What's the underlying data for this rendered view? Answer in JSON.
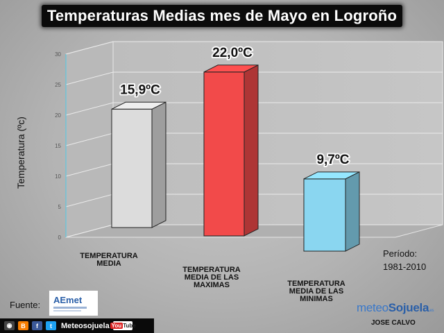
{
  "title": "Temperaturas Medias mes de Mayo en Logroño",
  "colors": {
    "media": "#dcdcdc",
    "maximas": "#f24a4a",
    "minimas": "#8ad6f0"
  },
  "chart_data": {
    "type": "bar",
    "ylabel": "Temperatura (ºc)",
    "ylim": [
      0,
      30
    ],
    "yticks": [
      "0",
      "5",
      "10",
      "15",
      "20",
      "25",
      "30"
    ],
    "grid": true,
    "categories": [
      [
        "TEMPERATURA",
        "MEDIA"
      ],
      [
        "TEMPERATURA",
        "MEDIA DE LAS",
        "MAXIMAS"
      ],
      [
        "TEMPERATURA",
        "MEDIA DE LAS",
        "MINIMAS"
      ]
    ],
    "values": [
      15.9,
      22.0,
      9.7
    ],
    "data_labels": [
      "15,9ºC",
      "22,0ºC",
      "9,7ºC"
    ],
    "bar_colors": [
      "#dcdcdc",
      "#f24a4a",
      "#8ad6f0"
    ]
  },
  "periodo": {
    "label": "Período:",
    "value": "1981-2010"
  },
  "fuente": "Fuente:",
  "aemet_logo_text": "AEmet",
  "social": {
    "label": "Meteosojuela",
    "icons": [
      "camera-icon",
      "blogger-icon",
      "facebook-icon",
      "twitter-icon"
    ],
    "youtube": "You"
  },
  "brand": {
    "name_part1": "meteo",
    "name_part2": "Sojuela",
    "name_suffix": ".es"
  },
  "author": "JOSE CALVO"
}
